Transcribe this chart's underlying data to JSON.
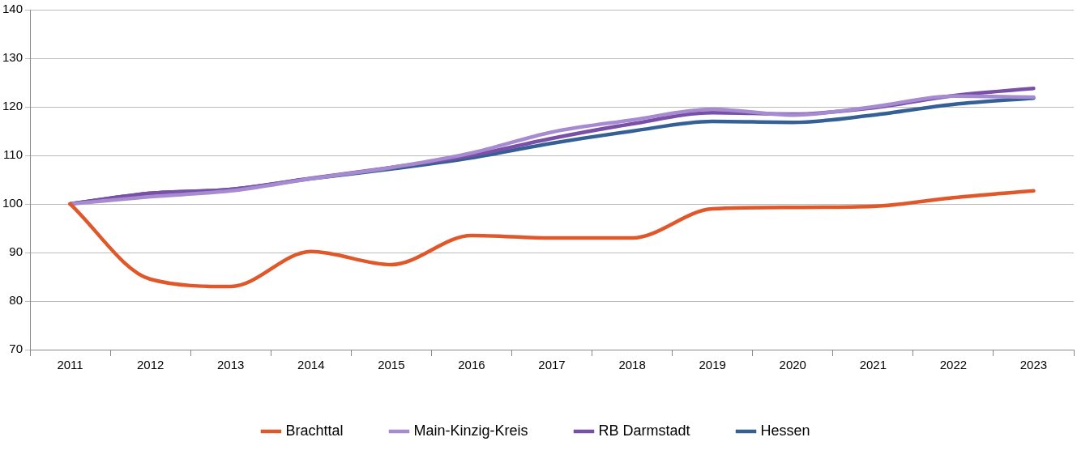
{
  "chart_data": {
    "type": "line",
    "categories": [
      "2011",
      "2012",
      "2013",
      "2014",
      "2015",
      "2016",
      "2017",
      "2018",
      "2019",
      "2020",
      "2021",
      "2022",
      "2023"
    ],
    "series": [
      {
        "name": "Brachttal",
        "color": "#e0582a",
        "values": [
          100,
          84.5,
          83,
          90.2,
          87.5,
          93.5,
          93,
          93,
          99,
          99.3,
          99.5,
          101.3,
          102.7
        ]
      },
      {
        "name": "Main-Kinzig-Kreis",
        "color": "#a68bd0",
        "values": [
          100,
          101.5,
          102.7,
          105.2,
          107.5,
          110.5,
          114.8,
          117.3,
          119.5,
          118.3,
          120,
          122.2,
          122
        ]
      },
      {
        "name": "RB Darmstadt",
        "color": "#7a4fa8",
        "values": [
          100,
          102.2,
          103,
          105.3,
          107.5,
          110,
          113.5,
          116.5,
          118.8,
          118.5,
          119.8,
          122.3,
          123.8
        ]
      },
      {
        "name": "Hessen",
        "color": "#356096",
        "values": [
          100,
          102.2,
          103,
          105.2,
          107.2,
          109.5,
          112.5,
          115,
          117,
          116.8,
          118.3,
          120.5,
          121.8
        ]
      }
    ],
    "ylim": [
      70,
      140
    ],
    "yticks": [
      70,
      80,
      90,
      100,
      110,
      120,
      130,
      140
    ],
    "grid": "y",
    "legend": "bottom",
    "marker": "none",
    "line_style": "solid"
  }
}
